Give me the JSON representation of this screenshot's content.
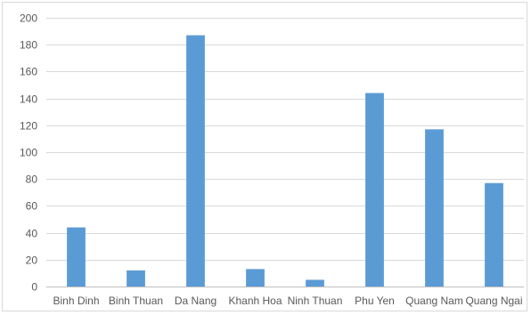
{
  "chart_data": {
    "type": "bar",
    "title": "",
    "xlabel": "",
    "ylabel": "",
    "categories": [
      "Binh Dinh",
      "Binh Thuan",
      "Da Nang",
      "Khanh Hoa",
      "Ninh Thuan",
      "Phu Yen",
      "Quang Nam",
      "Quang Ngai"
    ],
    "values": [
      44,
      12,
      187,
      13,
      5,
      144,
      117,
      77
    ],
    "ylim": [
      0,
      200
    ],
    "yticks": [
      0,
      20,
      40,
      60,
      80,
      100,
      120,
      140,
      160,
      180,
      200
    ],
    "grid": true,
    "legend": "none",
    "colors": {
      "bar": "#5b9bd5",
      "grid": "#d9d9d9",
      "axis": "#bfbfbf",
      "text": "#595959"
    }
  }
}
